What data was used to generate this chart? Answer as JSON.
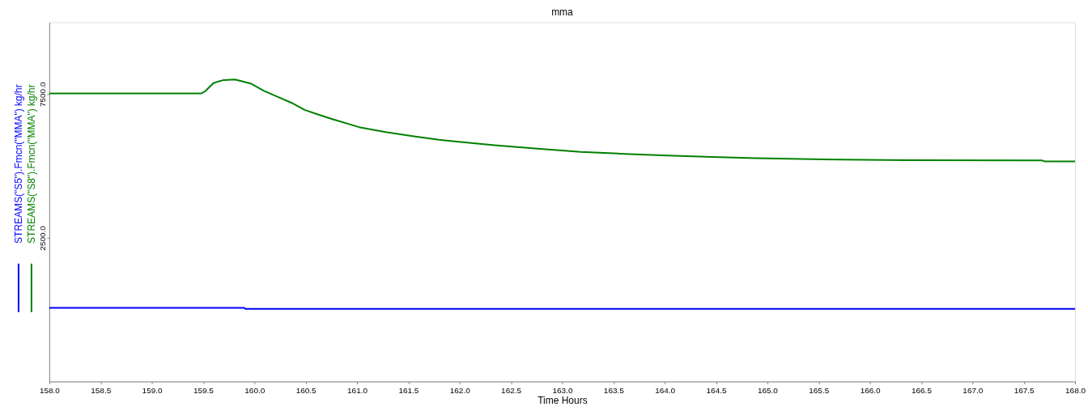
{
  "chart_data": {
    "type": "line",
    "title": "mma",
    "xlabel": "Time Hours",
    "xlim": [
      158,
      168
    ],
    "xticks": [
      {
        "value": 158,
        "label": "158.0"
      },
      {
        "value": 158.5,
        "label": "158.5"
      },
      {
        "value": 159,
        "label": "159.0"
      },
      {
        "value": 159.5,
        "label": "159.5"
      },
      {
        "value": 160,
        "label": "160.0"
      },
      {
        "value": 160.5,
        "label": "160.5"
      },
      {
        "value": 161,
        "label": "161.0"
      },
      {
        "value": 161.5,
        "label": "161.5"
      },
      {
        "value": 162,
        "label": "162.0"
      },
      {
        "value": 162.5,
        "label": "162.5"
      },
      {
        "value": 163,
        "label": "163.0"
      },
      {
        "value": 163.5,
        "label": "163.5"
      },
      {
        "value": 164,
        "label": "164.0"
      },
      {
        "value": 164.5,
        "label": "164.5"
      },
      {
        "value": 165,
        "label": "165.0"
      },
      {
        "value": 165.5,
        "label": "165.5"
      },
      {
        "value": 166,
        "label": "166.0"
      },
      {
        "value": 166.5,
        "label": "166.5"
      },
      {
        "value": 167,
        "label": "167.0"
      },
      {
        "value": 167.5,
        "label": "167.5"
      },
      {
        "value": 168,
        "label": "168.0"
      }
    ],
    "ylim": [
      -2500,
      10000
    ],
    "yticks": [
      {
        "value": 2500,
        "label": "2500.0"
      },
      {
        "value": 7500,
        "label": "7500.0"
      }
    ],
    "grid": false,
    "legend": "left",
    "line_style": "solid",
    "series": [
      {
        "name": "STREAMS(\"S5\").Fmcn(\"MMA\") kg/hr",
        "color": "#0000ff",
        "x": [
          158.0,
          159.9,
          159.91,
          168.0
        ],
        "values": [
          60,
          60,
          30,
          30
        ]
      },
      {
        "name": "STREAMS(\"S8\").Fmcn(\"MMA\") kg/hr",
        "color": "#008000",
        "x": [
          158.0,
          159.48,
          159.52,
          159.6,
          159.65,
          159.7,
          159.81,
          159.97,
          160.09,
          160.23,
          160.36,
          160.49,
          160.62,
          160.76,
          161.02,
          161.28,
          161.54,
          161.8,
          161.91,
          162.34,
          162.76,
          163.18,
          163.61,
          164.03,
          164.46,
          164.88,
          165.72,
          166.36,
          167.68,
          167.7,
          168.0
        ],
        "values": [
          7520,
          7520,
          7600,
          7880,
          7940,
          7990,
          8010,
          7860,
          7620,
          7400,
          7200,
          6950,
          6790,
          6630,
          6350,
          6180,
          6040,
          5910,
          5870,
          5720,
          5600,
          5490,
          5420,
          5360,
          5310,
          5270,
          5220,
          5200,
          5190,
          5160,
          5160
        ]
      }
    ]
  }
}
